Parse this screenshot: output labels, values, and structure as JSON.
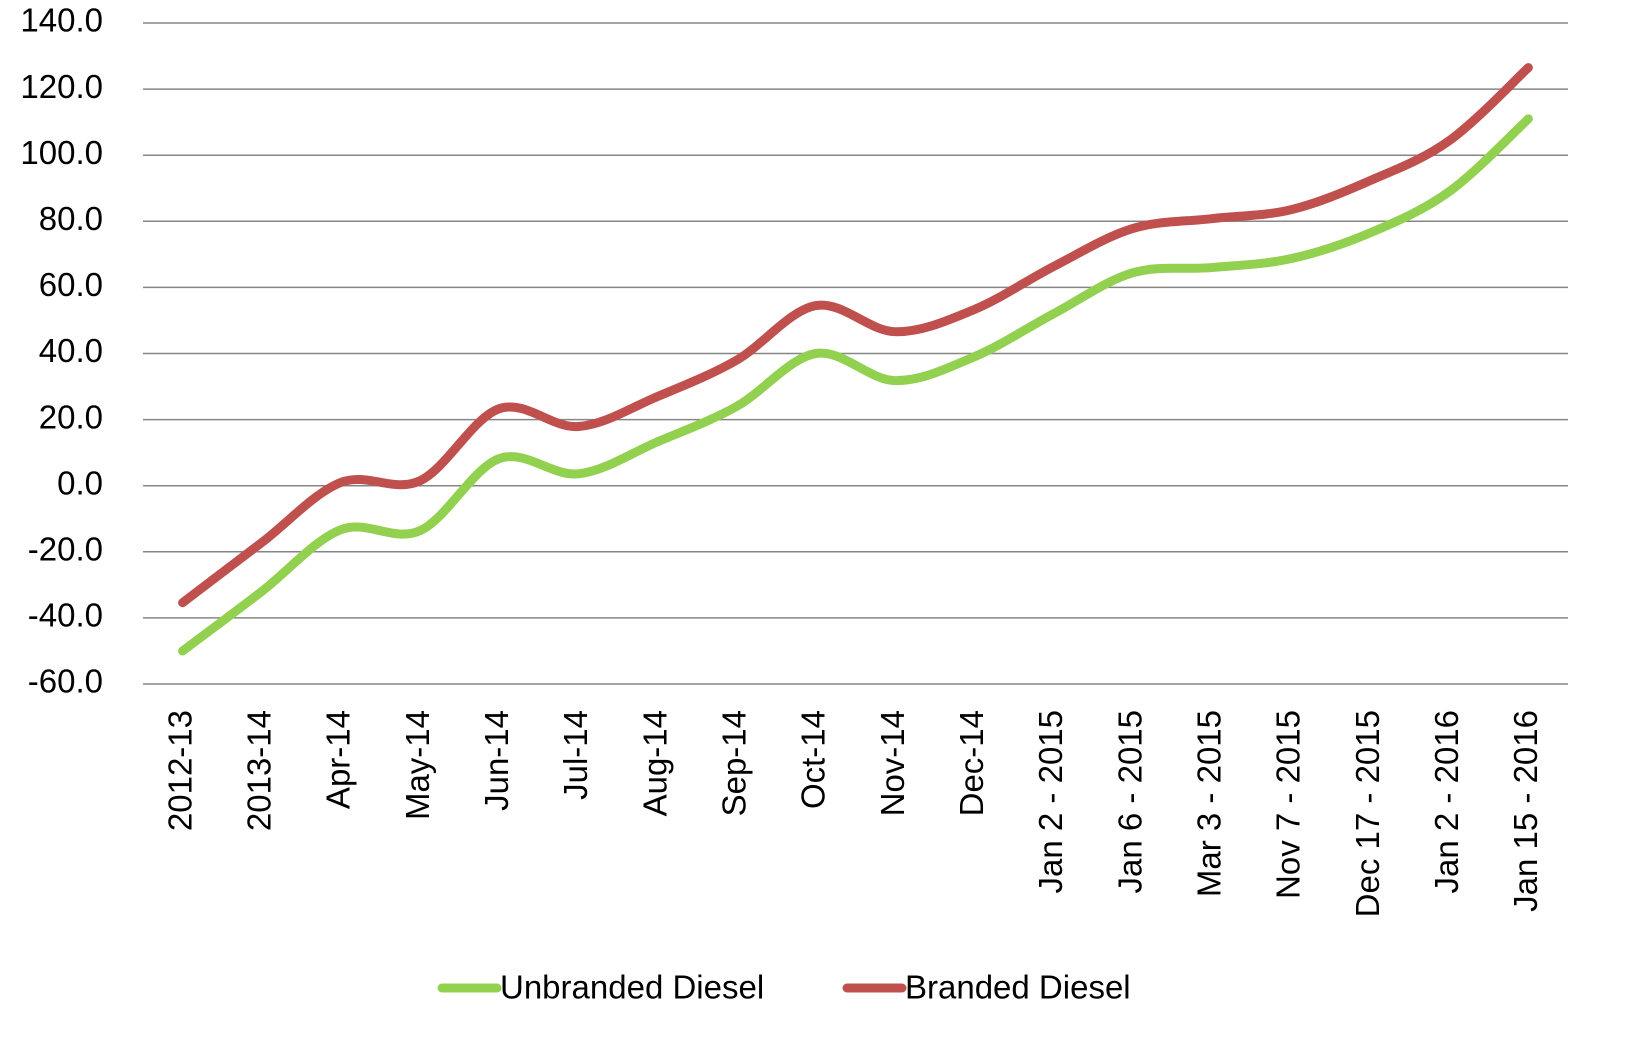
{
  "chart_data": {
    "type": "line",
    "categories": [
      "2012-13",
      "2013-14",
      "Apr-14",
      "May-14",
      "Jun-14",
      "Jul-14",
      "Aug-14",
      "Sep-14",
      "Oct-14",
      "Nov-14",
      "Dec-14",
      "Jan 2 - 2015",
      "Jan 6 - 2015",
      "Mar 3 - 2015",
      "Nov 7 - 2015",
      "Dec 17 - 2015",
      "Jan 2 - 2016",
      "Jan 15 - 2016"
    ],
    "series": [
      {
        "name": "Unbranded Diesel",
        "color": "#92d050",
        "values": [
          -50,
          -32,
          -13.3,
          -13.6,
          8.2,
          3.6,
          13.3,
          24,
          40,
          31.8,
          39,
          52,
          64.4,
          66,
          68.7,
          76.5,
          89,
          111
        ]
      },
      {
        "name": "Branded Diesel",
        "color": "#c0504d",
        "values": [
          -35.4,
          -17.2,
          1,
          1.5,
          23.3,
          17.9,
          27,
          38,
          54.5,
          46.6,
          53.3,
          66.3,
          77.8,
          80.8,
          83.5,
          92.3,
          104.4,
          126.5
        ]
      }
    ],
    "ylim": [
      -60,
      140
    ],
    "yticks": [
      {
        "value": -60,
        "label": "-60.0"
      },
      {
        "value": -40,
        "label": "-40.0"
      },
      {
        "value": -20,
        "label": "-20.0"
      },
      {
        "value": 0,
        "label": "0.0"
      },
      {
        "value": 20,
        "label": "20.0"
      },
      {
        "value": 40,
        "label": "40.0"
      },
      {
        "value": 60,
        "label": "60.0"
      },
      {
        "value": 80,
        "label": "80.0"
      },
      {
        "value": 100,
        "label": "100.0"
      },
      {
        "value": 120,
        "label": "120.0"
      },
      {
        "value": 140,
        "label": "140.0"
      }
    ],
    "grid": true,
    "smooth": true,
    "legend": "bottom"
  }
}
